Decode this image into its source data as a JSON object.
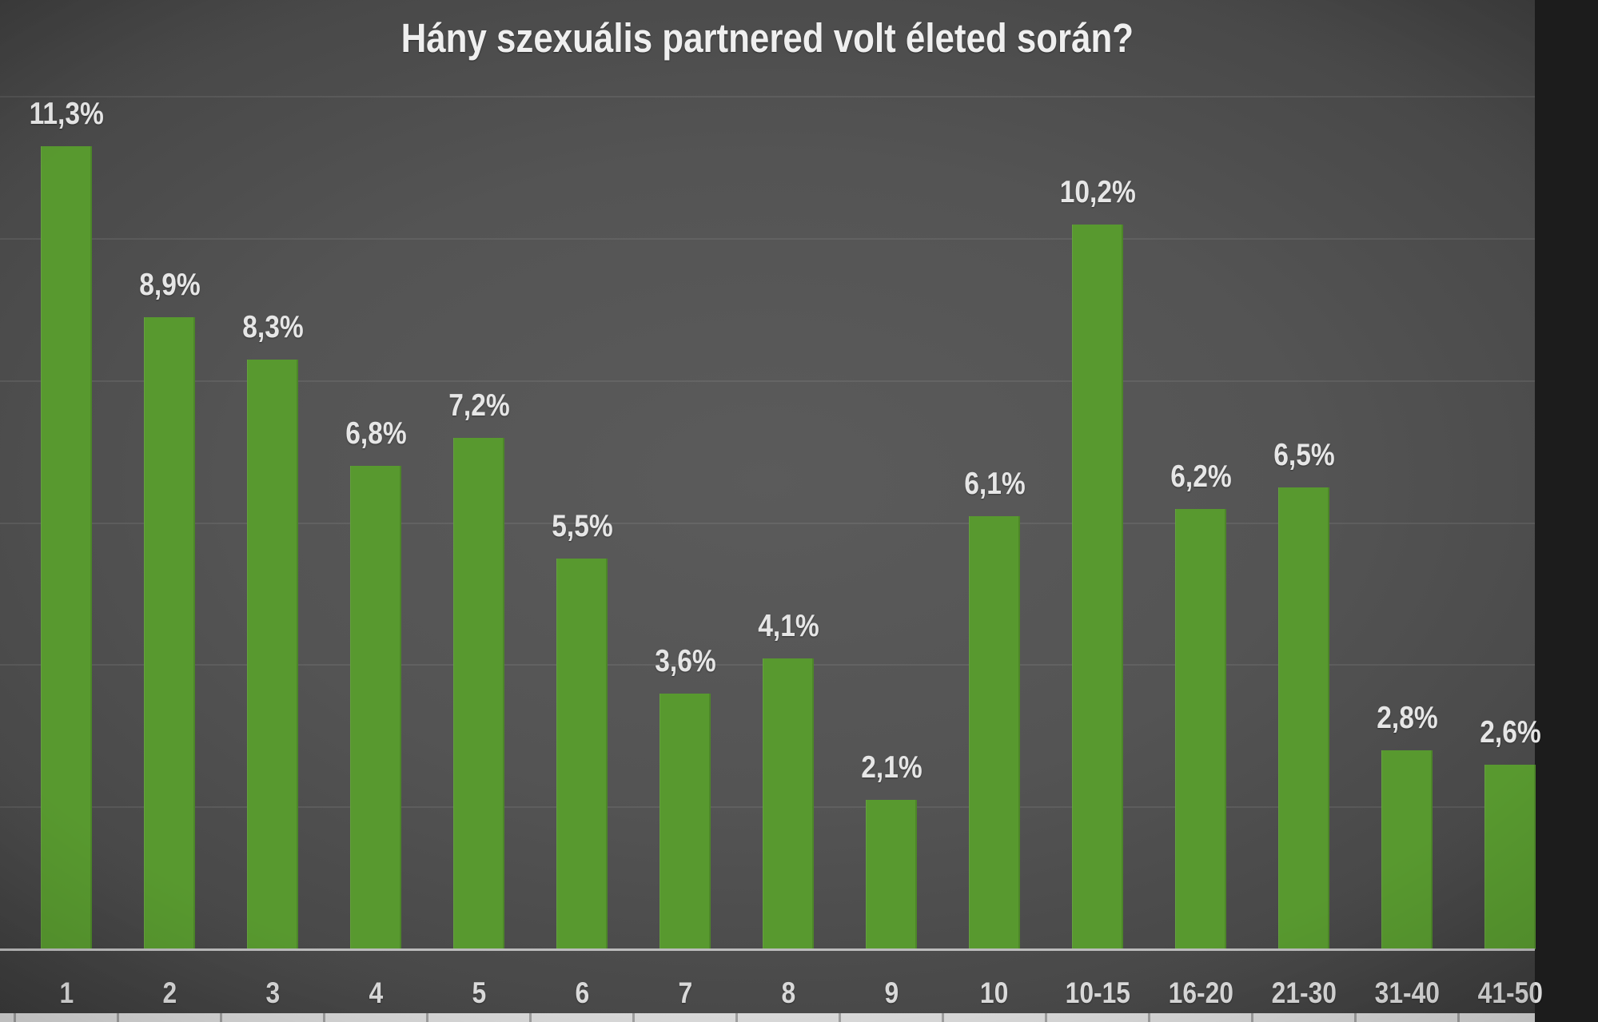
{
  "title": "Hány szexuális partnered volt életed során?",
  "chart_data": {
    "type": "bar",
    "title": "Hány szexuális partnered volt életed során?",
    "categories": [
      "1",
      "2",
      "3",
      "4",
      "5",
      "6",
      "7",
      "8",
      "9",
      "10",
      "10-15",
      "16-20",
      "21-30",
      "31-40",
      "41-50"
    ],
    "values": [
      11.3,
      8.9,
      8.3,
      6.8,
      7.2,
      5.5,
      3.6,
      4.1,
      2.1,
      6.1,
      10.2,
      6.2,
      6.5,
      2.8,
      2.6
    ],
    "data_labels": [
      "11,3%",
      "8,9%",
      "8,3%",
      "6,8%",
      "7,2%",
      "5,5%",
      "3,6%",
      "4,1%",
      "2,1%",
      "6,1%",
      "10,2%",
      "6,2%",
      "6,5%",
      "2,8%",
      "2,6%"
    ],
    "xlabel": "",
    "ylabel": "",
    "ylim": [
      0,
      12
    ],
    "grid": "horizontal gridlines every 2%, y-axis hidden",
    "legend_position": "none",
    "decimal_separator": ",",
    "colors": {
      "bar": "#58992f",
      "data_label": "#e6e6e6",
      "axis_label": "#dadada",
      "baseline": "#bcbcbc",
      "background_center": "#5b5b5b",
      "background_edge": "#262626",
      "bottom_strip": "#d8d8d8",
      "bottom_strip_tick": "#9d9d9d"
    }
  }
}
